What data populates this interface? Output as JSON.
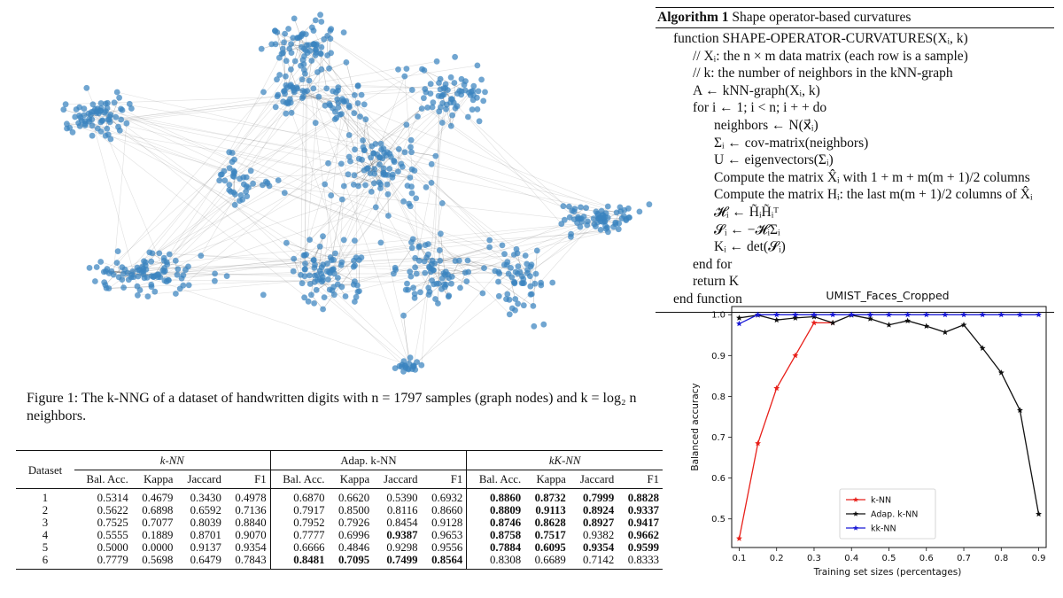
{
  "algorithm": {
    "label": "Algorithm 1",
    "title": "Shape operator-based curvatures",
    "lines": [
      "function SHAPE-OPERATOR-CURVATURES(Xᵢ, k)",
      "// Xᵢ: the n × m data matrix (each row is a sample)",
      "// k: the number of neighbors in the kNN-graph",
      "A ← kNN-graph(Xᵢ, k)",
      "for i ← 1; i < n; i + + do",
      "neighbors ← N(x⃗ᵢ)",
      "Σᵢ ← cov-matrix(neighbors)",
      "U ← eigenvectors(Σᵢ)",
      "Compute the matrix X̂ᵢ with 1 + m + m(m + 1)/2 columns",
      "Compute the matrix Hᵢ: the last m(m + 1)/2 columns of X̂ᵢ",
      "𝓗ᵢ ← H̃ᵢH̃ᵢᵀ",
      "𝓢ᵢ ← −𝓗ᵢΣᵢ",
      "Kᵢ ← det(𝓢ᵢ)",
      "end for",
      "return K",
      "end function"
    ]
  },
  "figure_caption": "Figure 1: The k-NNG of a dataset of handwritten digits with n = 1797 samples (graph nodes) and k = log₂ n neighbors.",
  "graph": {
    "node_color": "#3a84bf",
    "edge_color": "#555555",
    "node_count": 1797
  },
  "table": {
    "groups": [
      "k-NN",
      "Adap. k-NN",
      "kK-NN"
    ],
    "dataset_header": "Dataset",
    "metrics": [
      "Bal. Acc.",
      "Kappa",
      "Jaccard",
      "F1"
    ],
    "rows": [
      {
        "dataset": "1",
        "values": [
          "0.5314",
          "0.4679",
          "0.3430",
          "0.4978",
          "0.6870",
          "0.6620",
          "0.5390",
          "0.6932",
          "0.8860",
          "0.8732",
          "0.7999",
          "0.8828"
        ]
      },
      {
        "dataset": "2",
        "values": [
          "0.5622",
          "0.6898",
          "0.6592",
          "0.7136",
          "0.7917",
          "0.8500",
          "0.8116",
          "0.8660",
          "0.8809",
          "0.9113",
          "0.8924",
          "0.9337"
        ]
      },
      {
        "dataset": "3",
        "values": [
          "0.7525",
          "0.7077",
          "0.8039",
          "0.8840",
          "0.7952",
          "0.7926",
          "0.8454",
          "0.9128",
          "0.8746",
          "0.8628",
          "0.8927",
          "0.9417"
        ]
      },
      {
        "dataset": "4",
        "values": [
          "0.5555",
          "0.1889",
          "0.8701",
          "0.9070",
          "0.7777",
          "0.6996",
          "0.9387",
          "0.9653",
          "0.8758",
          "0.7517",
          "0.9382",
          "0.9662"
        ]
      },
      {
        "dataset": "5",
        "values": [
          "0.5000",
          "0.0000",
          "0.9137",
          "0.9354",
          "0.6666",
          "0.4846",
          "0.9298",
          "0.9556",
          "0.7884",
          "0.6095",
          "0.9354",
          "0.9599"
        ]
      },
      {
        "dataset": "6",
        "values": [
          "0.7779",
          "0.5698",
          "0.6479",
          "0.7843",
          "0.8481",
          "0.7095",
          "0.7499",
          "0.8564",
          "0.8308",
          "0.6689",
          "0.7142",
          "0.8333"
        ]
      }
    ],
    "bold": [
      [
        8,
        9,
        10,
        11
      ],
      [
        8,
        9,
        10,
        11
      ],
      [
        8,
        9,
        10,
        11
      ],
      [
        6,
        8,
        9,
        11
      ],
      [
        8,
        9,
        10,
        11
      ],
      [
        4,
        5,
        6,
        7
      ]
    ]
  },
  "chart_data": {
    "type": "line",
    "title": "UMIST_Faces_Cropped",
    "xlabel": "Training set sizes (percentages)",
    "ylabel": "Balanced accuracy",
    "xlim": [
      0.08,
      0.92
    ],
    "ylim": [
      0.43,
      1.02
    ],
    "xticks": [
      "0.1",
      "0.2",
      "0.3",
      "0.4",
      "0.5",
      "0.6",
      "0.7",
      "0.8",
      "0.9"
    ],
    "yticks": [
      "0.5",
      "0.6",
      "0.7",
      "0.8",
      "0.9",
      "1.0"
    ],
    "legend_position": "lower-center",
    "series": [
      {
        "name": "k-NN",
        "color": "#e8201a",
        "x": [
          0.1,
          0.15,
          0.2,
          0.25,
          0.3,
          0.35
        ],
        "y": [
          0.452,
          0.685,
          0.82,
          0.9,
          0.98,
          0.98
        ]
      },
      {
        "name": "Adap. k-NN",
        "color": "#111111",
        "x": [
          0.1,
          0.15,
          0.2,
          0.25,
          0.3,
          0.35,
          0.4,
          0.45,
          0.5,
          0.55,
          0.6,
          0.65,
          0.7,
          0.75,
          0.8,
          0.85,
          0.9
        ],
        "y": [
          0.992,
          0.999,
          0.987,
          0.992,
          0.995,
          0.98,
          0.999,
          0.99,
          0.975,
          0.985,
          0.972,
          0.957,
          0.975,
          0.918,
          0.858,
          0.766,
          0.512
        ]
      },
      {
        "name": "kk-NN",
        "color": "#1a1ad6",
        "x": [
          0.1,
          0.15,
          0.2,
          0.25,
          0.3,
          0.35,
          0.4,
          0.45,
          0.5,
          0.55,
          0.6,
          0.65,
          0.7,
          0.75,
          0.8,
          0.85,
          0.9
        ],
        "y": [
          0.978,
          1.0,
          1.0,
          1.0,
          1.0,
          1.0,
          1.0,
          1.0,
          1.0,
          1.0,
          1.0,
          1.0,
          1.0,
          1.0,
          1.0,
          1.0,
          1.0
        ]
      }
    ]
  }
}
